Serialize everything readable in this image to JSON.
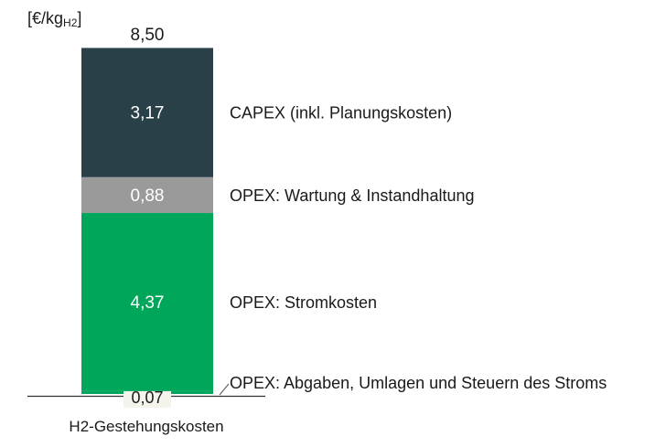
{
  "chart_data": {
    "type": "bar",
    "stacked": true,
    "ylabel_main": "[€/kg",
    "ylabel_sub": "H2",
    "ylabel_close": "]",
    "total": 8.5,
    "total_label": "8,50",
    "categories": [
      "H2-Gestehungskosten"
    ],
    "series": [
      {
        "name": "OPEX: Abgaben, Umlagen und Steuern des Stroms",
        "value": 0.07,
        "value_label": "0,07",
        "color": "#00a65a"
      },
      {
        "name": "OPEX: Stromkosten",
        "value": 4.37,
        "value_label": "4,37",
        "color": "#00a65a"
      },
      {
        "name": "OPEX: Wartung & Instandhaltung",
        "value": 0.88,
        "value_label": "0,88",
        "color": "#9a9a9a"
      },
      {
        "name": "CAPEX (inkl. Planungskosten)",
        "value": 3.17,
        "value_label": "3,17",
        "color": "#2a4049"
      }
    ],
    "grid": false,
    "legend": "right"
  }
}
